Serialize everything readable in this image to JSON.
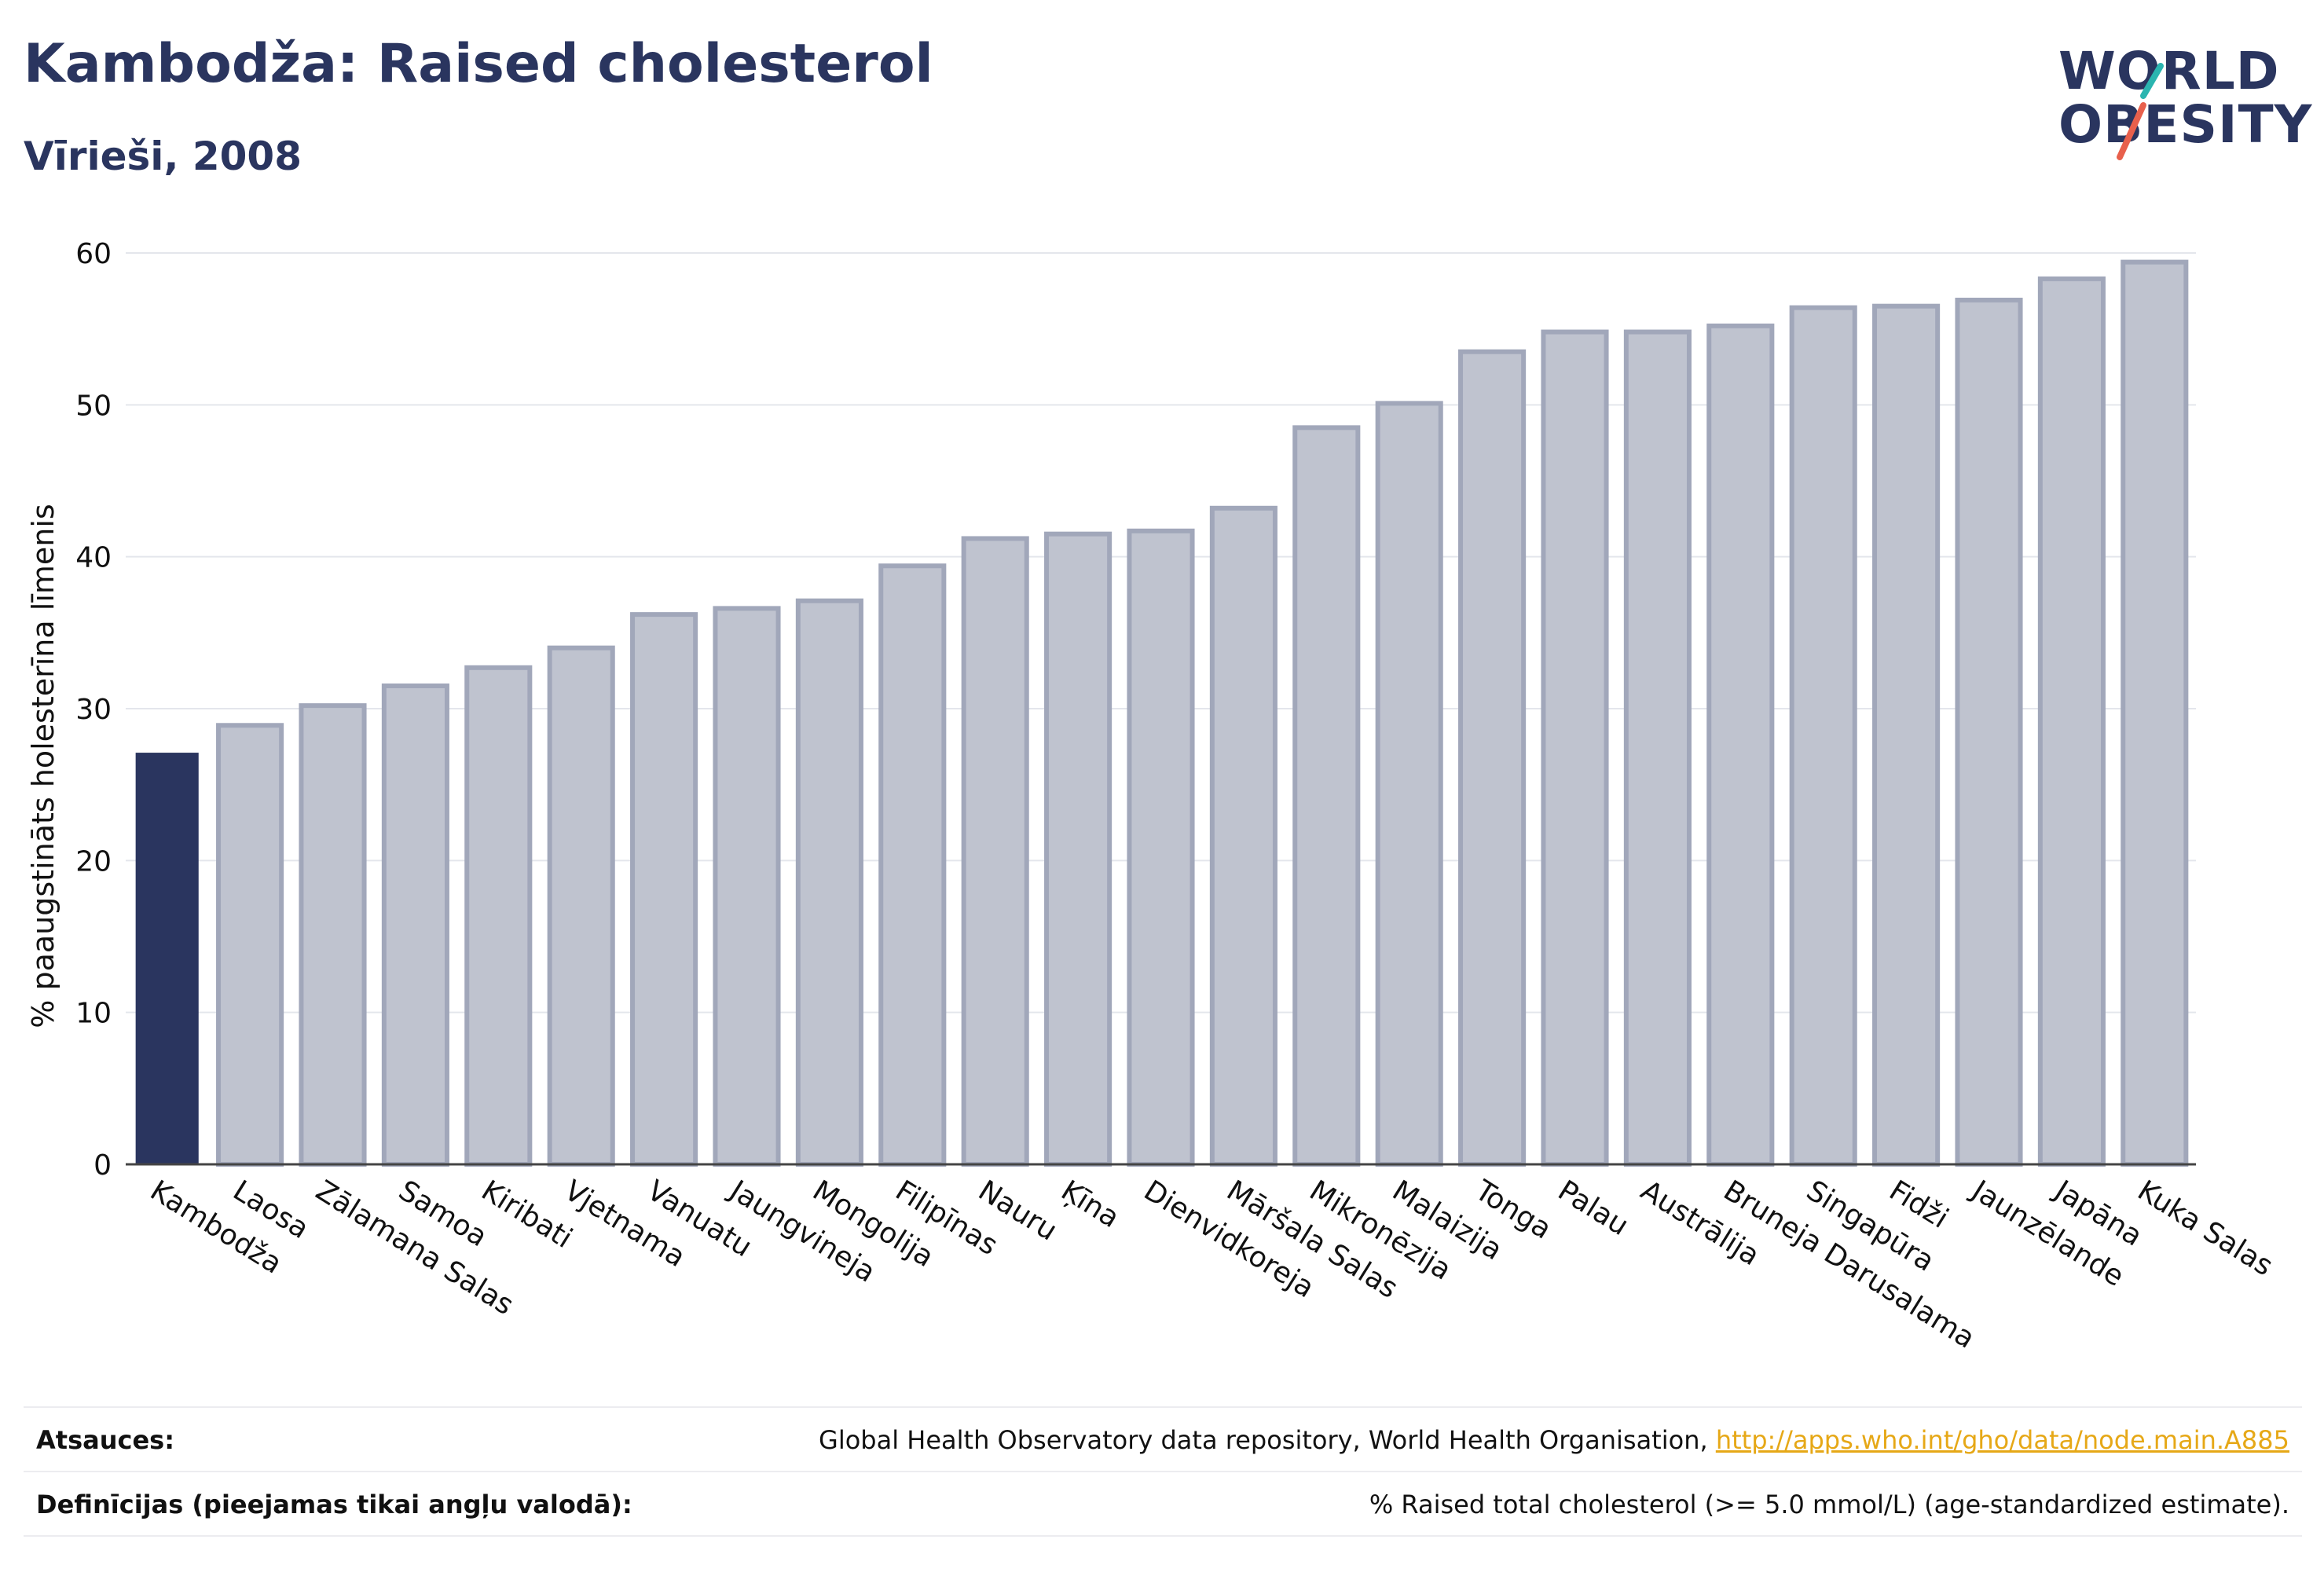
{
  "header": {
    "title": "Kambodža: Raised cholesterol",
    "subtitle": "Vīrieši, 2008"
  },
  "logo": {
    "line1": "WORLD",
    "line2": "OBESITY",
    "accent_teal": "#2bb5b0",
    "accent_red": "#e8604c"
  },
  "colors": {
    "highlight_bar": "#2a355f",
    "other_bar": "#bfc3cf",
    "other_bar_stroke": "#a1a7ba",
    "grid": "#e4e6ec",
    "text": "#2a355f"
  },
  "chart_data": {
    "type": "bar",
    "ylabel": "% paaugstināts holesterīna līmenis",
    "ylim": [
      0,
      60
    ],
    "yticks": [
      0,
      10,
      20,
      30,
      40,
      50,
      60
    ],
    "grid": true,
    "highlight": "Kambodža",
    "categories": [
      "Kambodža",
      "Laosa",
      "Zālamana Salas",
      "Samoa",
      "Kiribati",
      "Vjetnama",
      "Vanuatu",
      "Jaungvineja",
      "Mongolija",
      "Filipīnas",
      "Nauru",
      "Ķīna",
      "Dienvidkoreja",
      "Māršala Salas",
      "Mikronēzija",
      "Malaizija",
      "Tonga",
      "Palau",
      "Austrālija",
      "Bruneja Darusalama",
      "Singapūra",
      "Fidži",
      "Jaunzēlande",
      "Japāna",
      "Kuka Salas"
    ],
    "values": [
      27.1,
      28.9,
      30.2,
      31.5,
      32.7,
      34.0,
      36.2,
      36.6,
      37.1,
      39.4,
      41.2,
      41.5,
      41.7,
      43.2,
      48.5,
      50.1,
      53.5,
      54.8,
      54.8,
      55.2,
      56.4,
      56.5,
      56.9,
      58.3,
      59.4
    ]
  },
  "footer": {
    "sources_label": "Atsauces:",
    "sources_text": "Global Health Observatory data repository, World Health Organisation,",
    "sources_link": "http://apps.who.int/gho/data/node.main.A885",
    "definitions_label": "Definīcijas (pieejamas tikai angļu valodā):",
    "definitions_text": "% Raised total cholesterol (>= 5.0 mmol/L) (age-standardized estimate)."
  }
}
